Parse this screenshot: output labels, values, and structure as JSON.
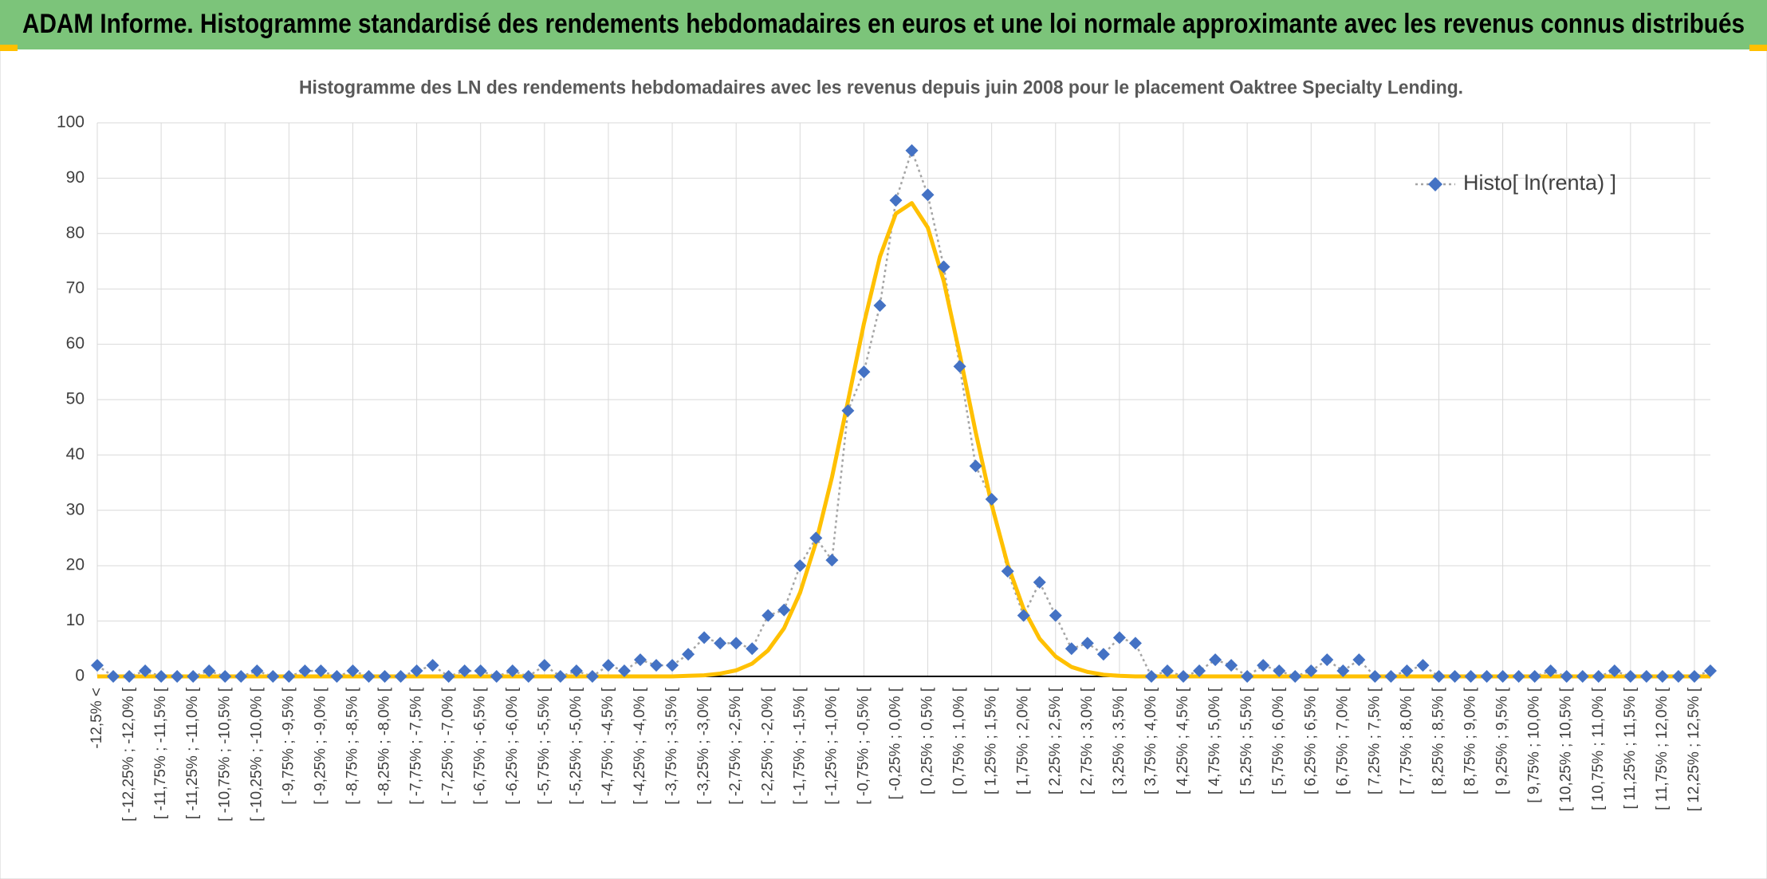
{
  "header": {
    "title": "ADAM Informe. Histogramme standardisé des rendements hebdomadaires en euros et une loi normale approximante avec les revenus connus distribués"
  },
  "chart_data": {
    "type": "line",
    "title": "Histogramme des LN des rendements hebdomadaires avec les revenus depuis juin 2008 pour le placement Oaktree Specialty Lending.",
    "categories": [
      "-12,5% <",
      null,
      "[ -12,25% ; -12,0% [",
      null,
      "[ -11,75% ; -11,5% [",
      null,
      "[ -11,25% ; -11,0% [",
      null,
      "[ -10,75% ; -10,5% [",
      null,
      "[ -10,25% ; -10,0% [",
      null,
      "[ -9,75% ; -9,5% [",
      null,
      "[ -9,25% ; -9,0% [",
      null,
      "[ -8,75% ; -8,5% [",
      null,
      "[ -8,25% ; -8,0% [",
      null,
      "[ -7,75% ; -7,5% [",
      null,
      "[ -7,25% ; -7,0% [",
      null,
      "[ -6,75% ; -6,5% [",
      null,
      "[ -6,25% ; -6,0% [",
      null,
      "[ -5,75% ; -5,5% [",
      null,
      "[ -5,25% ; -5,0% [",
      null,
      "[ -4,75% ; -4,5% [",
      null,
      "[ -4,25% ; -4,0% [",
      null,
      "[ -3,75% ; -3,5% [",
      null,
      "[ -3,25% ; -3,0% [",
      null,
      "[ -2,75% ; -2,5% [",
      null,
      "[ -2,25% ; -2,0% [",
      null,
      "[ -1,75% ; -1,5% [",
      null,
      "[ -1,25% ; -1,0% [",
      null,
      "[ -0,75% ; -0,5% [",
      null,
      "[ -0,25% ; 0,0% [",
      null,
      "[ 0,25% ; 0,5% [",
      null,
      "[ 0,75% ; 1,0% [",
      null,
      "[ 1,25% ; 1,5% [",
      null,
      "[ 1,75% ; 2,0% [",
      null,
      "[ 2,25% ; 2,5% [",
      null,
      "[ 2,75% ; 3,0% [",
      null,
      "[ 3,25% ; 3,5% [",
      null,
      "[ 3,75% ; 4,0% [",
      null,
      "[ 4,25% ; 4,5% [",
      null,
      "[ 4,75% ; 5,0% [",
      null,
      "[ 5,25% ; 5,5% [",
      null,
      "[ 5,75% ; 6,0% [",
      null,
      "[ 6,25% ; 6,5% [",
      null,
      "[ 6,75% ; 7,0% [",
      null,
      "[ 7,25% ; 7,5% [",
      null,
      "[ 7,75% ; 8,0% [",
      null,
      "[ 8,25% ; 8,5% [",
      null,
      "[ 8,75% ; 9,0% [",
      null,
      "[ 9,25% ; 9,5% [",
      null,
      "[ 9,75% ; 10,0% [",
      null,
      "[ 10,25% ; 10,5% [",
      null,
      "[ 10,75% ; 11,0% [",
      null,
      "[ 11,25% ; 11,5% [",
      null,
      "[ 11,75% ; 12,0% [",
      null,
      "[ 12,25% ; 12,5% [",
      null
    ],
    "series": [
      {
        "name": "Histo[ ln(renta) ]",
        "color": "#4472c4",
        "line_color": "#a5a5a5",
        "values": [
          2,
          0,
          0,
          1,
          0,
          0,
          0,
          1,
          0,
          0,
          1,
          0,
          0,
          1,
          1,
          0,
          1,
          0,
          0,
          0,
          1,
          2,
          0,
          1,
          1,
          0,
          1,
          0,
          2,
          0,
          1,
          0,
          2,
          1,
          3,
          2,
          2,
          4,
          7,
          6,
          6,
          5,
          11,
          12,
          20,
          25,
          21,
          48,
          55,
          67,
          86,
          95,
          87,
          74,
          56,
          38,
          32,
          19,
          11,
          17,
          11,
          5,
          6,
          4,
          7,
          6,
          0,
          1,
          0,
          1,
          3,
          2,
          0,
          2,
          1,
          0,
          1,
          3,
          1,
          3,
          0,
          0,
          1,
          2,
          0,
          0,
          0,
          0,
          0,
          0,
          0,
          1,
          0,
          0,
          0,
          1,
          0,
          0,
          0,
          0,
          0,
          1
        ]
      },
      {
        "color": "#ffc000",
        "values": [
          0,
          0,
          0,
          0,
          0,
          0,
          0,
          0,
          0,
          0,
          0,
          0,
          0,
          0,
          0,
          0,
          0,
          0,
          0,
          0,
          0,
          0,
          0,
          0,
          0,
          0,
          0,
          0,
          0,
          0,
          0,
          0,
          0,
          0,
          0,
          0,
          0,
          0.1,
          0.2,
          0.5,
          1.1,
          2.3,
          4.7,
          8.7,
          15.1,
          24.2,
          36.0,
          49.7,
          63.7,
          75.8,
          83.6,
          85.5,
          81.1,
          71.4,
          58.2,
          44.1,
          31.0,
          20.2,
          12.2,
          6.8,
          3.6,
          1.7,
          0.8,
          0.3,
          0.1,
          0,
          0,
          0,
          0,
          0,
          0,
          0,
          0,
          0,
          0,
          0,
          0,
          0,
          0,
          0,
          0,
          0,
          0,
          0,
          0,
          0,
          0,
          0,
          0,
          0,
          0,
          0,
          0,
          0,
          0,
          0,
          0,
          0,
          0,
          0,
          0,
          0
        ]
      }
    ],
    "ylim": [
      0,
      100
    ],
    "yticks": [
      0,
      10,
      20,
      30,
      40,
      50,
      60,
      70,
      80,
      90,
      100
    ],
    "grid": true,
    "legend": "upper right"
  }
}
